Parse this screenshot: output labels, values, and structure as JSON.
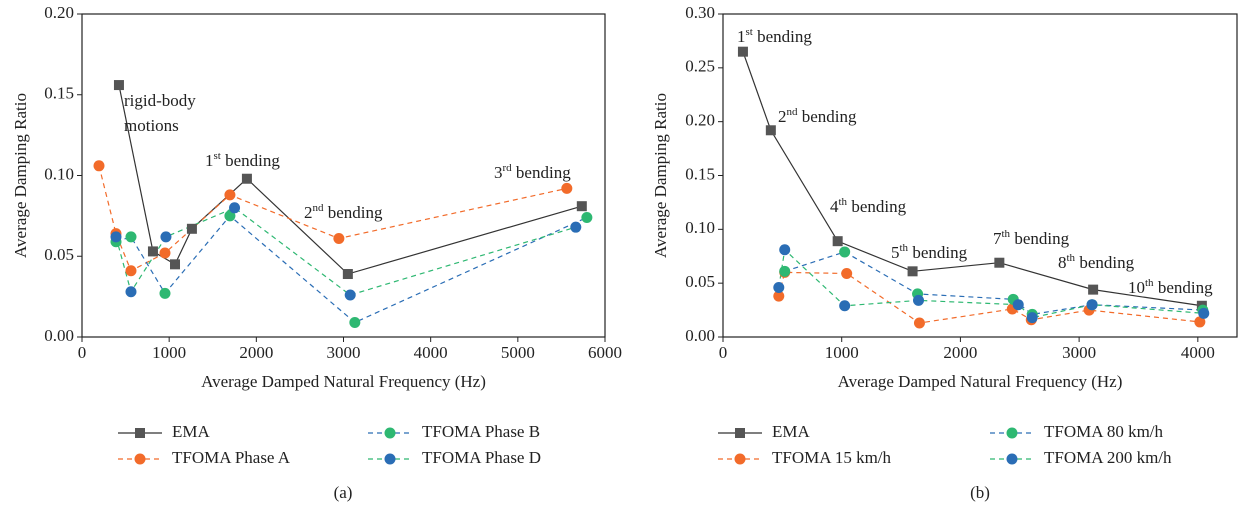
{
  "chart_data": [
    {
      "type": "line",
      "label": "(a)",
      "xlabel": "Average Damped Natural Frequency (Hz)",
      "ylabel": "Average Damping Ratio",
      "xlim": [
        0,
        6000
      ],
      "xticks": [
        0,
        1000,
        2000,
        3000,
        4000,
        5000,
        6000
      ],
      "ylim": [
        0,
        0.2
      ],
      "yticks": [
        {
          "value": 0,
          "label": "0.00"
        },
        {
          "value": 0.05,
          "label": "0.05"
        },
        {
          "value": 0.1,
          "label": "0.10"
        },
        {
          "value": 0.15,
          "label": "0.15"
        },
        {
          "value": 0.2,
          "label": "0.20"
        }
      ],
      "series": [
        {
          "name": "EMA",
          "color": "#555555",
          "line_color": "#333333",
          "marker": "square",
          "line_style": "solid",
          "x": [
            424,
            814,
            1067,
            1261,
            1892,
            3050,
            5734
          ],
          "values": [
            0.156,
            0.053,
            0.045,
            0.067,
            0.098,
            0.039,
            0.081
          ]
        },
        {
          "name": "TFOMA Phase A",
          "color": "#f26b2a",
          "line_color": "#f26b2a",
          "marker": "circle",
          "line_style": "dashed",
          "x": [
            195,
            390,
            562,
            952,
            1697,
            2947,
            5562
          ],
          "values": [
            0.106,
            0.064,
            0.041,
            0.052,
            0.088,
            0.061,
            0.092
          ]
        },
        {
          "name": "TFOMA Phase B",
          "color": "#2eb872",
          "line_color": "#2a6db5",
          "marker": "circle",
          "line_style": "dashed",
          "x": [
            390,
            562,
            952,
            1697,
            3130,
            5792
          ],
          "values": [
            0.059,
            0.062,
            0.027,
            0.075,
            0.009,
            0.074
          ]
        },
        {
          "name": "TFOMA Phase D",
          "color": "#2a6db5",
          "line_color": "#2eb872",
          "marker": "circle",
          "line_style": "dashed",
          "x": [
            390,
            562,
            963,
            1750,
            3077,
            5665
          ],
          "values": [
            0.062,
            0.028,
            0.062,
            0.08,
            0.026,
            0.068
          ]
        }
      ],
      "annotations": [
        {
          "lines": [
            "rigid-body",
            "motions"
          ]
        },
        {
          "parts": [
            "1",
            "st",
            " bending"
          ]
        },
        {
          "parts": [
            "2",
            "nd",
            " bending"
          ]
        },
        {
          "parts": [
            "3",
            "rd",
            " bending"
          ]
        }
      ]
    },
    {
      "type": "line",
      "label": "(b)",
      "xlabel": "Average Damped Natural Frequency (Hz)",
      "ylabel": "Average Damping Ratio",
      "xlim": [
        0,
        4330
      ],
      "xticks": [
        0,
        1000,
        2000,
        3000,
        4000
      ],
      "ylim": [
        0,
        0.3
      ],
      "yticks": [
        {
          "value": 0,
          "label": "0.00"
        },
        {
          "value": 0.05,
          "label": "0.05"
        },
        {
          "value": 0.1,
          "label": "0.10"
        },
        {
          "value": 0.15,
          "label": "0.15"
        },
        {
          "value": 0.2,
          "label": "0.20"
        },
        {
          "value": 0.25,
          "label": "0.25"
        },
        {
          "value": 0.3,
          "label": "0.30"
        }
      ],
      "series": [
        {
          "name": "EMA",
          "color": "#555555",
          "line_color": "#333333",
          "marker": "square",
          "line_style": "solid",
          "x": [
            168,
            403,
            966,
            1597,
            2328,
            3118,
            4034
          ],
          "values": [
            0.265,
            0.192,
            0.089,
            0.061,
            0.069,
            0.044,
            0.029
          ]
        },
        {
          "name": "TFOMA 15 km/h",
          "color": "#f26b2a",
          "line_color": "#f26b2a",
          "marker": "circle",
          "line_style": "dashed",
          "x": [
            470,
            520,
            1042,
            1655,
            2437,
            2597,
            3084,
            4017
          ],
          "values": [
            0.038,
            0.06,
            0.059,
            0.013,
            0.026,
            0.016,
            0.025,
            0.014
          ]
        },
        {
          "name": "TFOMA 80 km/h",
          "color": "#2eb872",
          "line_color": "#2a6db5",
          "marker": "circle",
          "line_style": "dashed",
          "x": [
            520,
            1025,
            1639,
            2445,
            2605,
            3109,
            4042
          ],
          "values": [
            0.061,
            0.079,
            0.04,
            0.035,
            0.021,
            0.03,
            0.025
          ]
        },
        {
          "name": "TFOMA 200 km/h",
          "color": "#2a6db5",
          "line_color": "#2eb872",
          "marker": "circle",
          "line_style": "dashed",
          "x": [
            470,
            520,
            1025,
            1647,
            2487,
            2605,
            3109,
            4050
          ],
          "values": [
            0.046,
            0.081,
            0.029,
            0.034,
            0.03,
            0.018,
            0.03,
            0.022
          ]
        }
      ],
      "annotations": [
        {
          "parts": [
            "1",
            "st",
            " bending"
          ]
        },
        {
          "parts": [
            "2",
            "nd",
            " bending"
          ]
        },
        {
          "parts": [
            "4",
            "th",
            " bending"
          ]
        },
        {
          "parts": [
            "5",
            "th",
            " bending"
          ]
        },
        {
          "parts": [
            "7",
            "th",
            " bending"
          ]
        },
        {
          "parts": [
            "8",
            "th",
            " bending"
          ]
        },
        {
          "parts": [
            "10",
            "th",
            " bending"
          ]
        }
      ]
    }
  ]
}
